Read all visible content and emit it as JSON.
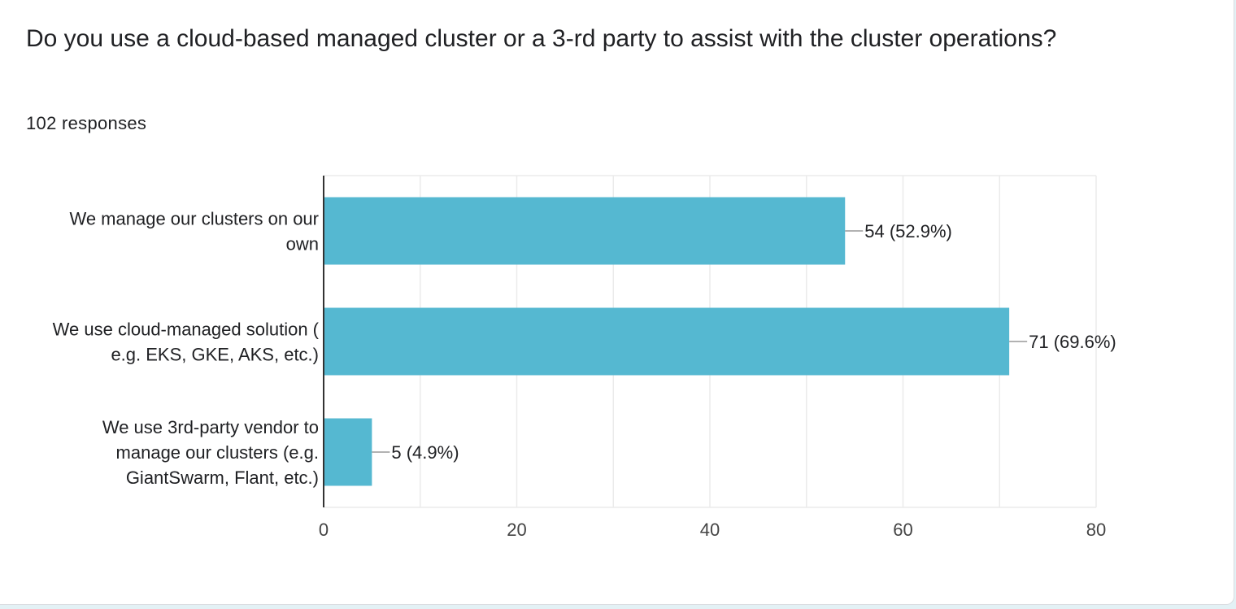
{
  "question": {
    "title": "Do you use a cloud-based managed cluster or a 3-rd party to assist with the cluster operations?",
    "responses": "102 responses"
  },
  "colors": {
    "bar": "#55b8d1",
    "grid": "#ebebeb",
    "axis": "#333333",
    "text": "#202124",
    "leader": "#999999"
  },
  "chart_data": {
    "type": "bar",
    "orientation": "horizontal",
    "categories": [
      [
        "We manage our clusters on our",
        "own"
      ],
      [
        "We use cloud-managed solution (",
        "e.g. EKS, GKE, AKS, etc.)"
      ],
      [
        "We use 3rd-party vendor to",
        "manage our clusters (e.g.",
        "GiantSwarm, Flant, etc.)"
      ]
    ],
    "values": [
      54,
      71,
      5
    ],
    "data_labels": [
      "54 (52.9%)",
      "71 (69.6%)",
      "5 (4.9%)"
    ],
    "xlim": [
      0,
      80
    ],
    "ticks": [
      0,
      20,
      40,
      60,
      80
    ],
    "tick_labels": [
      "0",
      "20",
      "40",
      "60",
      "80"
    ],
    "grid": true,
    "legend": "none"
  }
}
